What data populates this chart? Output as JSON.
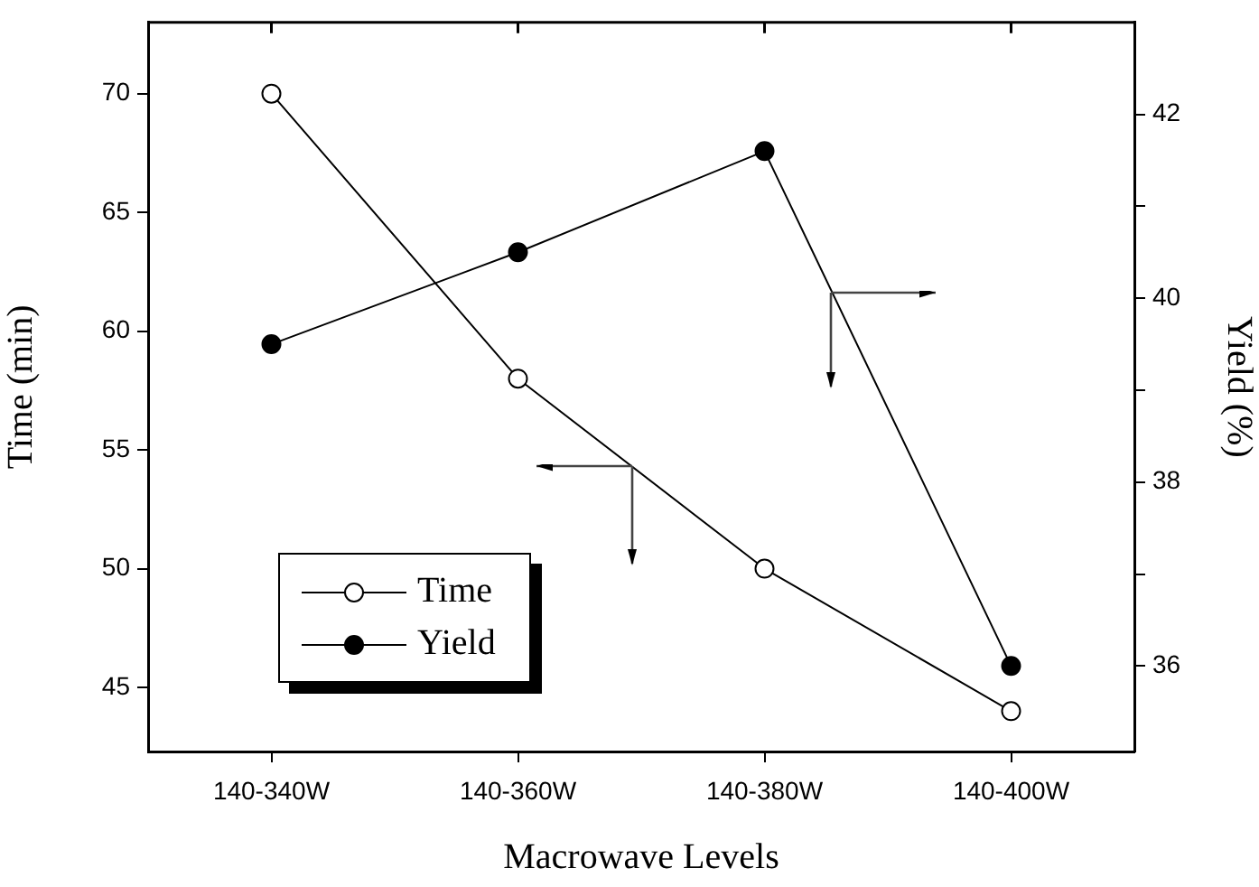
{
  "chart_data": {
    "type": "line",
    "xlabel": "Macrowave Levels",
    "ylabel": "Time (min)",
    "y2label": "Yield (%)",
    "categories": [
      "140-340W",
      "140-360W",
      "140-380W",
      "140-400W"
    ],
    "series": [
      {
        "name": "Time",
        "color": "#000000",
        "values": [
          70,
          58,
          50,
          44
        ]
      },
      {
        "name": "Yield",
        "color": "#000000",
        "values": [
          39.5,
          40.5,
          41.6,
          36.0
        ],
        "axis": "y2"
      }
    ],
    "ylim": [
      42.3,
      73
    ],
    "yticks": [
      45,
      50,
      55,
      60,
      65,
      70
    ],
    "y2lim": [
      35.07,
      43
    ],
    "y2ticks": [
      36,
      {
        "value": 37,
        "label": null
      },
      38,
      {
        "value": 39,
        "label": null
      },
      40,
      {
        "value": 41,
        "label": null
      },
      42
    ],
    "grid": false,
    "legend": "bottom left",
    "marker": "circle",
    "line_style": "solid"
  }
}
